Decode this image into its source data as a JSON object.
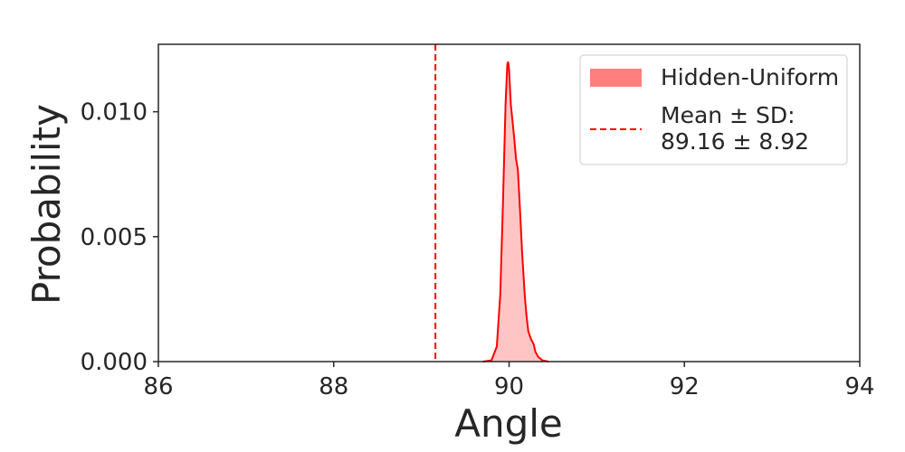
{
  "chart_data": {
    "type": "area",
    "xlabel": "Angle",
    "ylabel": "Probability",
    "xlim": [
      86,
      94
    ],
    "ylim": [
      0,
      0.0127
    ],
    "x_ticks": [
      86,
      88,
      90,
      92,
      94
    ],
    "x_tick_labels": [
      "86",
      "88",
      "90",
      "92",
      "94"
    ],
    "y_ticks": [
      0.0,
      0.005,
      0.01
    ],
    "y_tick_labels": [
      "0.000",
      "0.005",
      "0.010"
    ],
    "grid": false,
    "legend_position": "top-right",
    "series": [
      {
        "name": "Hidden-Uniform",
        "kind": "filled-density",
        "fill_color": "#ff7f7f",
        "line_color": "#ff0000",
        "x": [
          89.7,
          89.8,
          89.86,
          89.9,
          89.93,
          89.96,
          89.98,
          89.99,
          90.0,
          90.02,
          90.04,
          90.06,
          90.08,
          90.1,
          90.12,
          90.15,
          90.18,
          90.2,
          90.22,
          90.25,
          90.28,
          90.3,
          90.33,
          90.38,
          90.45
        ],
        "y": [
          0.0,
          5e-05,
          0.0006,
          0.0027,
          0.0063,
          0.0103,
          0.0119,
          0.012,
          0.0117,
          0.0103,
          0.0096,
          0.0089,
          0.0081,
          0.0077,
          0.0064,
          0.0043,
          0.0026,
          0.0018,
          0.0012,
          0.0009,
          0.0007,
          0.0004,
          0.0002,
          5e-05,
          0.0
        ]
      }
    ],
    "reference_line": {
      "label_line1": "Mean ± SD:",
      "label_line2": "89.16 ± 8.92",
      "x": 89.16,
      "color": "#ff0000",
      "style": "dashed"
    }
  }
}
